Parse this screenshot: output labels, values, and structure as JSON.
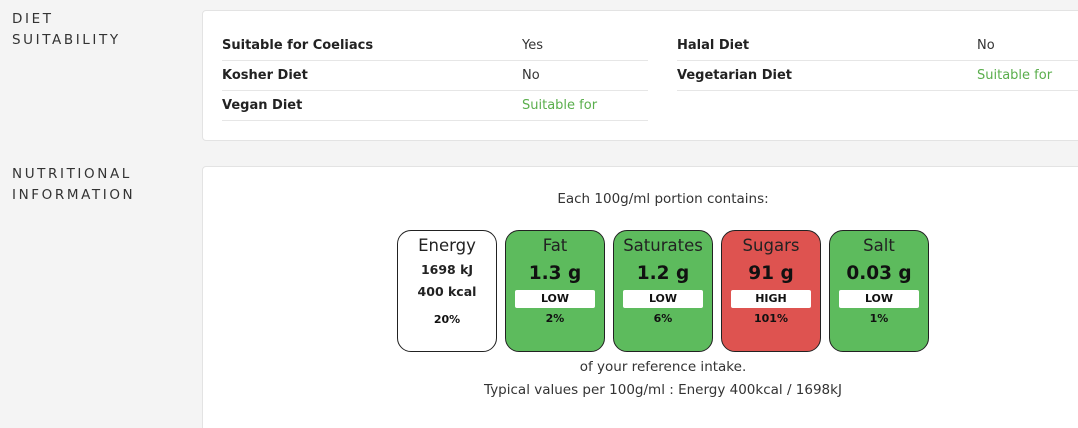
{
  "diet": {
    "label": "DIET\nSUITABILITY",
    "items": [
      {
        "name": "Suitable for Coeliacs",
        "value": "Yes",
        "good": false
      },
      {
        "name": "Kosher Diet",
        "value": "No",
        "good": false
      },
      {
        "name": "Vegan Diet",
        "value": "Suitable for",
        "good": true
      },
      {
        "name": "Halal Diet",
        "value": "No",
        "good": false
      },
      {
        "name": "Vegetarian Diet",
        "value": "Suitable for",
        "good": true
      }
    ],
    "good_color": "#5aae4c"
  },
  "nutrition": {
    "label": "NUTRITIONAL\nINFORMATION",
    "portion_title": "Each 100g/ml portion contains:",
    "energy": {
      "name": "Energy",
      "kj": "1698 kJ",
      "kcal": "400 kcal",
      "percent": "20%"
    },
    "lights": [
      {
        "name": "Fat",
        "amount": "1.3 g",
        "level": "LOW",
        "percent": "2%",
        "color": "#5dbb5d"
      },
      {
        "name": "Saturates",
        "amount": "1.2 g",
        "level": "LOW",
        "percent": "6%",
        "color": "#5dbb5d"
      },
      {
        "name": "Sugars",
        "amount": "91 g",
        "level": "HIGH",
        "percent": "101%",
        "color": "#de5350"
      },
      {
        "name": "Salt",
        "amount": "0.03 g",
        "level": "LOW",
        "percent": "1%",
        "color": "#5dbb5d"
      }
    ],
    "reference_text": "of your reference intake.",
    "typical_text": "Typical values per 100g/ml : Energy 400kcal / 1698kJ"
  }
}
